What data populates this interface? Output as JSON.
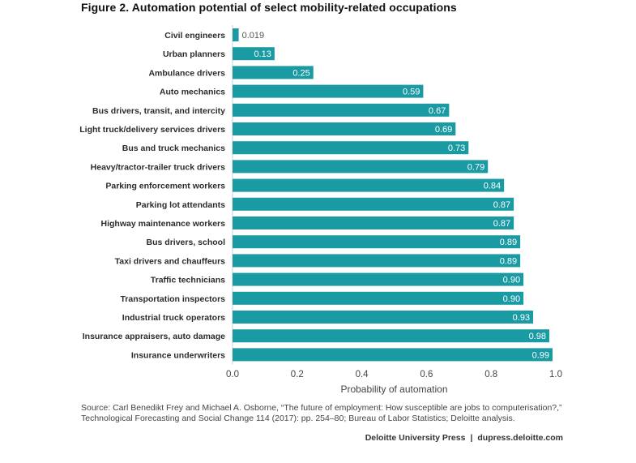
{
  "title": "Figure 2. Automation potential of select mobility-related occupations",
  "chart_data": {
    "type": "bar",
    "orientation": "horizontal",
    "categories": [
      "Civil engineers",
      "Urban planners",
      "Ambulance drivers",
      "Auto mechanics",
      "Bus drivers, transit, and intercity",
      "Light truck/delivery services drivers",
      "Bus and truck mechanics",
      "Heavy/tractor-trailer truck drivers",
      "Parking enforcement workers",
      "Parking lot attendants",
      "Highway maintenance workers",
      "Bus drivers, school",
      "Taxi drivers and chauffeurs",
      "Traffic technicians",
      "Transportation inspectors",
      "Industrial truck operators",
      "Insurance appraisers, auto damage",
      "Insurance underwriters"
    ],
    "values": [
      0.019,
      0.13,
      0.25,
      0.59,
      0.67,
      0.69,
      0.73,
      0.79,
      0.84,
      0.87,
      0.87,
      0.89,
      0.89,
      0.9,
      0.9,
      0.93,
      0.98,
      0.99
    ],
    "value_labels": [
      "0.019",
      "0.13",
      "0.25",
      "0.59",
      "0.67",
      "0.69",
      "0.73",
      "0.79",
      "0.84",
      "0.87",
      "0.87",
      "0.89",
      "0.89",
      "0.90",
      "0.90",
      "0.93",
      "0.98",
      "0.99"
    ],
    "xlabel": "Probability of automation",
    "ylabel": "",
    "xlim": [
      0,
      1.0
    ],
    "x_ticks": [
      "0.0",
      "0.2",
      "0.4",
      "0.6",
      "0.8",
      "1.0"
    ],
    "grid": false,
    "bar_color": "#1a9aa3"
  },
  "source": "Source: Carl Benedikt Frey and Michael A. Osborne, “The future of employment: How susceptible are jobs to computerisation?,” Technological Forecasting and Social Change 114 (2017): pp. 254–80; Bureau of Labor Statistics; Deloitte analysis.",
  "footer": {
    "publisher": "Deloitte University Press",
    "separator": "|",
    "url": "dupress.deloitte.com"
  }
}
